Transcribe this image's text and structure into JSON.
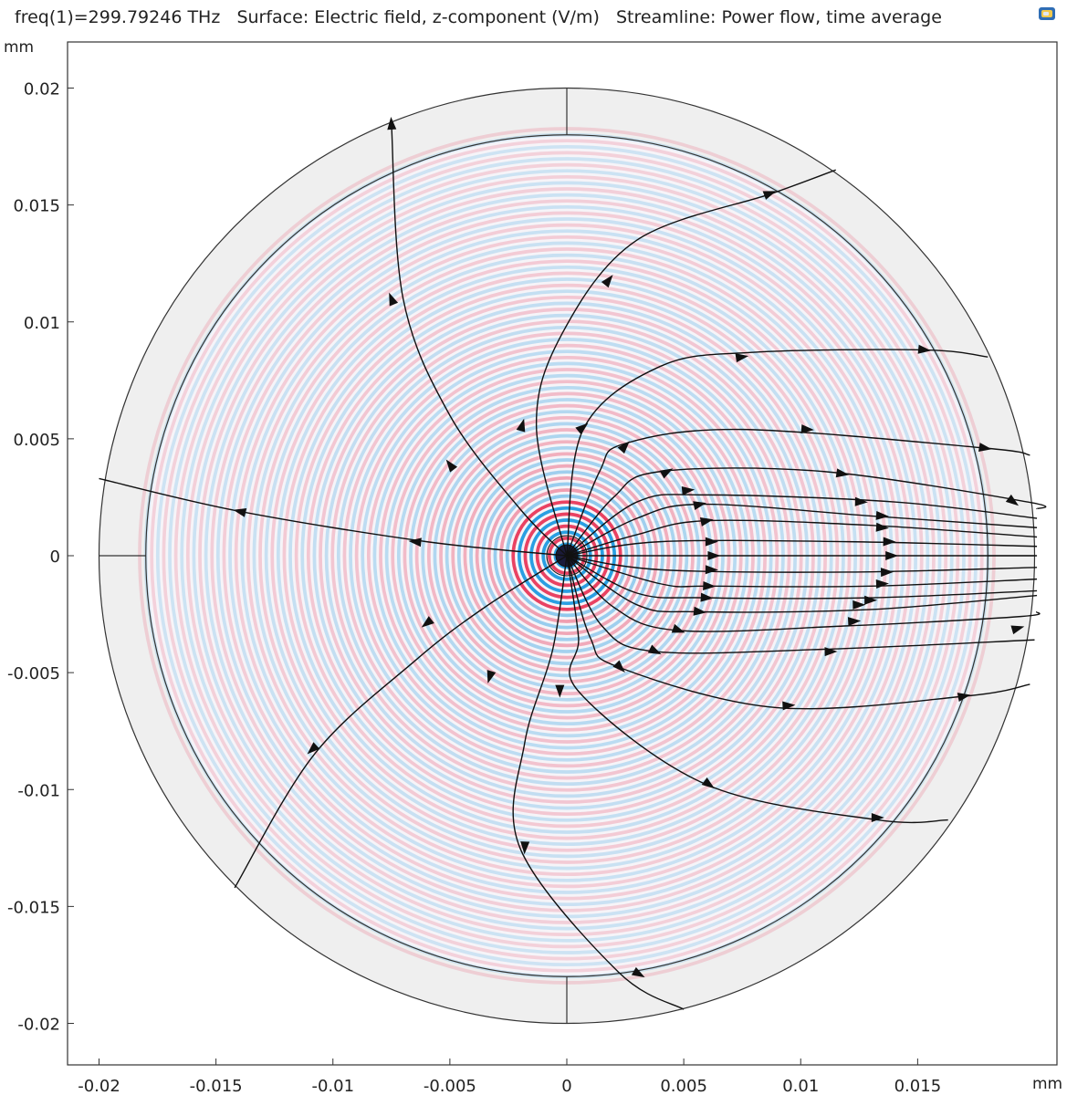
{
  "title": "freq(1)=299.79246 THz   Surface: Electric field, z-component (V/m)   Streamline: Power flow, time average",
  "toolbar_icon": "plot-settings-icon",
  "chart_data": {
    "type": "field-plot",
    "surface": "Electric field, z-component (V/m)",
    "streamline": "Power flow, time average",
    "frequency": "freq(1)=299.79246 THz",
    "x_unit": "mm",
    "y_unit": "mm",
    "xlim": [
      -0.0202,
      0.0218
    ],
    "ylim": [
      -0.0218,
      0.0218
    ],
    "xticks": [
      -0.02,
      -0.015,
      -0.01,
      -0.005,
      0,
      0.005,
      0.01,
      0.015
    ],
    "xtick_labels": [
      "-0.02",
      "-0.015",
      "-0.01",
      "-0.005",
      "0",
      "0.005",
      "0.01",
      "0.015"
    ],
    "yticks": [
      0.02,
      0.015,
      0.01,
      0.005,
      0,
      -0.005,
      -0.01,
      -0.015,
      -0.02
    ],
    "ytick_labels": [
      "0.02",
      "0.015",
      "0.01",
      "0.005",
      "0",
      "-0.005",
      "-0.01",
      "-0.015",
      "-0.02"
    ],
    "geometry": {
      "outer_circle_radius": 0.02,
      "inner_circle_radius": 0.018,
      "center": [
        0,
        0
      ]
    },
    "colors": {
      "positive": "#e8385a",
      "negative": "#1f9ae0",
      "pml": "#efefef",
      "line": "#111111"
    },
    "streamlines": [
      {
        "id": "s1",
        "points": [
          [
            0,
            0
          ],
          [
            -0.002,
            0.002
          ],
          [
            -0.005,
            0.006
          ],
          [
            -0.007,
            0.011
          ],
          [
            -0.0075,
            0.0185
          ]
        ],
        "arrows": [
          [
            -0.005,
            0.0039
          ],
          [
            -0.0075,
            0.011
          ],
          [
            -0.0075,
            0.0185
          ]
        ]
      },
      {
        "id": "s2",
        "points": [
          [
            0,
            0
          ],
          [
            -0.0013,
            0.0055
          ],
          [
            -0.0002,
            0.0095
          ],
          [
            0.003,
            0.0135
          ],
          [
            0.0088,
            0.0155
          ],
          [
            0.0115,
            0.0165
          ]
        ],
        "arrows": [
          [
            -0.0019,
            0.0056
          ],
          [
            0.0018,
            0.0118
          ],
          [
            0.0087,
            0.0155
          ]
        ]
      },
      {
        "id": "s3",
        "points": [
          [
            0,
            0
          ],
          [
            0.0007,
            0.0054
          ],
          [
            0.004,
            0.0081
          ],
          [
            0.008,
            0.0087
          ],
          [
            0.0153,
            0.0088
          ],
          [
            0.018,
            0.0085
          ]
        ],
        "arrows": [
          [
            0.0007,
            0.0055
          ],
          [
            0.0075,
            0.0085
          ],
          [
            0.0153,
            0.0088
          ]
        ]
      },
      {
        "id": "s4",
        "points": [
          [
            0,
            0
          ],
          [
            0.0014,
            0.0036
          ],
          [
            0.0025,
            0.0048
          ],
          [
            0.0075,
            0.0054
          ],
          [
            0.0179,
            0.0046
          ],
          [
            0.0198,
            0.0043
          ]
        ],
        "arrows": [
          [
            0.0025,
            0.0047
          ],
          [
            0.0103,
            0.0054
          ],
          [
            0.0179,
            0.0046
          ]
        ]
      },
      {
        "id": "s5",
        "points": [
          [
            0,
            0
          ],
          [
            0.002,
            0.0025
          ],
          [
            0.004,
            0.0036
          ],
          [
            0.011,
            0.0036
          ],
          [
            0.0197,
            0.0023
          ],
          [
            0.0201,
            0.002
          ]
        ],
        "arrows": [
          [
            0.0043,
            0.0036
          ],
          [
            0.0118,
            0.0035
          ],
          [
            0.0191,
            0.0023
          ]
        ]
      },
      {
        "id": "s6",
        "points": [
          [
            0,
            0
          ],
          [
            0.003,
            0.0023
          ],
          [
            0.006,
            0.0026
          ],
          [
            0.014,
            0.0023
          ],
          [
            0.0201,
            0.0016
          ]
        ],
        "arrows": [
          [
            0.0052,
            0.0028
          ],
          [
            0.0126,
            0.0023
          ]
        ]
      },
      {
        "id": "s7",
        "points": [
          [
            0,
            0
          ],
          [
            0.003,
            0.0016
          ],
          [
            0.0058,
            0.0022
          ],
          [
            0.013,
            0.0017
          ],
          [
            0.0201,
            0.0012
          ]
        ],
        "arrows": [
          [
            0.0057,
            0.0022
          ],
          [
            0.0135,
            0.0017
          ]
        ]
      },
      {
        "id": "s8",
        "points": [
          [
            0,
            0
          ],
          [
            0.003,
            0.0009
          ],
          [
            0.006,
            0.0015
          ],
          [
            0.013,
            0.0013
          ],
          [
            0.0201,
            0.0008
          ]
        ],
        "arrows": [
          [
            0.006,
            0.0015
          ],
          [
            0.0135,
            0.0012
          ]
        ]
      },
      {
        "id": "s9",
        "points": [
          [
            0,
            0
          ],
          [
            0.004,
            0.0006
          ],
          [
            0.012,
            0.0006
          ],
          [
            0.0201,
            0.0004
          ]
        ],
        "arrows": [
          [
            0.0062,
            0.0006
          ],
          [
            0.0138,
            0.0006
          ]
        ]
      },
      {
        "id": "s10",
        "points": [
          [
            0,
            0
          ],
          [
            0.005,
            0.0
          ],
          [
            0.013,
            0.0
          ],
          [
            0.0201,
            0.0
          ]
        ],
        "arrows": [
          [
            0.0063,
            0.0
          ],
          [
            0.0139,
            0.0
          ]
        ]
      },
      {
        "id": "s11",
        "points": [
          [
            0,
            0
          ],
          [
            0.004,
            -0.0006
          ],
          [
            0.012,
            -0.0007
          ],
          [
            0.0201,
            -0.0005
          ]
        ],
        "arrows": [
          [
            0.0062,
            -0.0006
          ],
          [
            0.0137,
            -0.0007
          ]
        ]
      },
      {
        "id": "s12",
        "points": [
          [
            0,
            0
          ],
          [
            0.004,
            -0.0012
          ],
          [
            0.0062,
            -0.0013
          ],
          [
            0.013,
            -0.0013
          ],
          [
            0.0201,
            -0.001
          ]
        ],
        "arrows": [
          [
            0.0061,
            -0.0013
          ],
          [
            0.0135,
            -0.0012
          ]
        ]
      },
      {
        "id": "s13",
        "points": [
          [
            0,
            0
          ],
          [
            0.003,
            -0.0016
          ],
          [
            0.006,
            -0.0018
          ],
          [
            0.013,
            -0.0018
          ],
          [
            0.0201,
            -0.0015
          ]
        ],
        "arrows": [
          [
            0.006,
            -0.0018
          ],
          [
            0.013,
            -0.0019
          ]
        ]
      },
      {
        "id": "s14",
        "points": [
          [
            0,
            0
          ],
          [
            0.003,
            -0.0021
          ],
          [
            0.0057,
            -0.0024
          ],
          [
            0.013,
            -0.0023
          ],
          [
            0.0201,
            -0.0017
          ]
        ],
        "arrows": [
          [
            0.0057,
            -0.0024
          ],
          [
            0.0125,
            -0.0021
          ]
        ]
      },
      {
        "id": "s15",
        "points": [
          [
            0,
            0
          ],
          [
            0.002,
            -0.0022
          ],
          [
            0.0048,
            -0.0032
          ],
          [
            0.012,
            -0.003
          ],
          [
            0.0194,
            -0.0026
          ],
          [
            0.0201,
            -0.0024
          ]
        ],
        "arrows": [
          [
            0.0048,
            -0.0032
          ],
          [
            0.0123,
            -0.0028
          ],
          [
            0.0193,
            -0.0031
          ]
        ]
      },
      {
        "id": "s16",
        "points": [
          [
            0,
            0
          ],
          [
            0.0015,
            -0.003
          ],
          [
            0.0038,
            -0.0041
          ],
          [
            0.011,
            -0.004
          ],
          [
            0.02,
            -0.0036
          ]
        ],
        "arrows": [
          [
            0.0038,
            -0.0041
          ],
          [
            0.0113,
            -0.0041
          ]
        ]
      },
      {
        "id": "s17",
        "points": [
          [
            0,
            0
          ],
          [
            0.001,
            -0.0035
          ],
          [
            0.0023,
            -0.0048
          ],
          [
            0.009,
            -0.0065
          ],
          [
            0.0171,
            -0.006
          ],
          [
            0.0198,
            -0.0055
          ]
        ],
        "arrows": [
          [
            0.0023,
            -0.0048
          ],
          [
            0.0095,
            -0.0064
          ],
          [
            0.017,
            -0.006
          ]
        ]
      },
      {
        "id": "s18",
        "points": [
          [
            0,
            0
          ],
          [
            0.0005,
            -0.0035
          ],
          [
            0.0005,
            -0.0058
          ],
          [
            0.006,
            -0.0098
          ],
          [
            0.0133,
            -0.0113
          ],
          [
            0.0163,
            -0.0113
          ]
        ],
        "arrows": [
          [
            -0.0003,
            -0.0058
          ],
          [
            0.0061,
            -0.0098
          ],
          [
            0.0133,
            -0.0112
          ]
        ]
      },
      {
        "id": "s19",
        "points": [
          [
            0,
            0
          ],
          [
            -0.0006,
            -0.004
          ],
          [
            -0.0018,
            -0.008
          ],
          [
            -0.002,
            -0.0125
          ],
          [
            0.0022,
            -0.0178
          ],
          [
            0.005,
            -0.0194
          ]
        ],
        "arrows": [
          [
            -0.0033,
            -0.0052
          ],
          [
            -0.0018,
            -0.0125
          ],
          [
            0.0031,
            -0.0179
          ]
        ]
      },
      {
        "id": "s20",
        "points": [
          [
            0,
            0
          ],
          [
            -0.0035,
            -0.0022
          ],
          [
            -0.0065,
            -0.0045
          ],
          [
            -0.0108,
            -0.0085
          ],
          [
            -0.0142,
            -0.0142
          ]
        ],
        "arrows": [
          [
            -0.006,
            -0.0029
          ],
          [
            -0.0109,
            -0.0083
          ]
        ]
      },
      {
        "id": "s21",
        "points": [
          [
            0,
            0
          ],
          [
            -0.006,
            0.0006
          ],
          [
            -0.014,
            0.0019
          ],
          [
            -0.02,
            0.0033
          ]
        ],
        "arrows": [
          [
            -0.0065,
            0.0006
          ],
          [
            -0.014,
            0.0019
          ]
        ]
      }
    ]
  }
}
